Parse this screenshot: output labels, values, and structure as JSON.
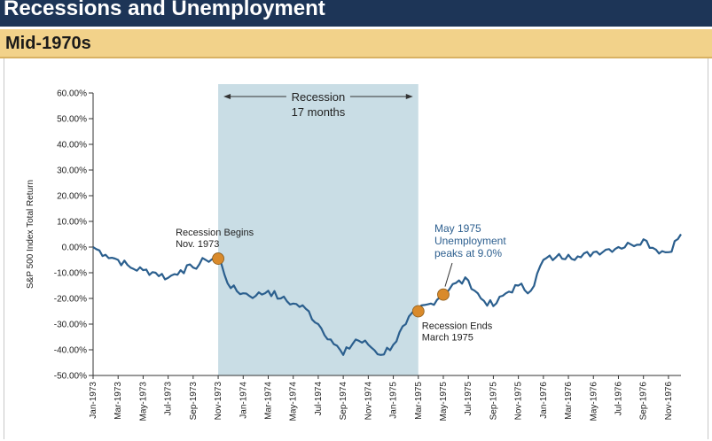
{
  "header": {
    "title": "Recessions and Unemployment"
  },
  "subheader": {
    "title": "Mid-1970s"
  },
  "colors": {
    "header_bg": "#1d3557",
    "subheader_bg": "#f2d28a",
    "line": "#2b5f8e",
    "recession_shade": "#c9dde5",
    "marker": "#d98a2b",
    "annotation_blue": "#2d5f8f"
  },
  "chart_data": {
    "type": "line",
    "ylabel": "S&P 500 Index Total Return",
    "ylim": [
      -50,
      60
    ],
    "yticks": [
      "60.00%",
      "50.00%",
      "40.00%",
      "30.00%",
      "20.00%",
      "10.00%",
      "0.00%",
      "-10.00%",
      "-20.00%",
      "-30.00%",
      "-40.00%",
      "-50.00%"
    ],
    "ytick_values": [
      60,
      50,
      40,
      30,
      20,
      10,
      0,
      -10,
      -20,
      -30,
      -40,
      -50
    ],
    "x_tick_labels": [
      "Jan-1973",
      "Mar-1973",
      "May-1973",
      "Jul-1973",
      "Sep-1973",
      "Nov-1973",
      "Jan-1974",
      "Mar-1974",
      "May-1974",
      "Jul-1974",
      "Sep-1974",
      "Nov-1974",
      "Jan-1975",
      "Mar-1975",
      "May-1975",
      "Jul-1975",
      "Sep-1975",
      "Nov-1975",
      "Jan-1976",
      "Mar-1976",
      "May-1976",
      "Jul-1976",
      "Sep-1976",
      "Nov-1976"
    ],
    "x_range": [
      "1973-01",
      "1976-12"
    ],
    "grid": false,
    "recession": {
      "start": "1973-11",
      "end": "1975-03",
      "label_line1": "Recession",
      "label_line2": "17 months"
    },
    "series": [
      {
        "x": [
          "1973-01",
          "1973-02",
          "1973-03",
          "1973-04",
          "1973-05",
          "1973-06",
          "1973-07",
          "1973-08",
          "1973-09",
          "1973-10",
          "1973-11",
          "1973-12",
          "1974-01",
          "1974-02",
          "1974-03",
          "1974-04",
          "1974-05",
          "1974-06",
          "1974-07",
          "1974-08",
          "1974-09",
          "1974-10",
          "1974-11",
          "1974-12",
          "1975-01",
          "1975-02",
          "1975-03",
          "1975-04",
          "1975-05",
          "1975-06",
          "1975-07",
          "1975-08",
          "1975-09",
          "1975-10",
          "1975-11",
          "1975-12",
          "1976-01",
          "1976-02",
          "1976-03",
          "1976-04",
          "1976-05",
          "1976-06",
          "1976-07",
          "1976-08",
          "1976-09",
          "1976-10",
          "1976-11",
          "1976-12"
        ],
        "values": [
          0,
          -3,
          -5,
          -8,
          -9,
          -10,
          -12,
          -9,
          -8,
          -5,
          -4,
          -16,
          -18,
          -19,
          -17,
          -20,
          -22,
          -24,
          -30,
          -36,
          -42,
          -36,
          -38,
          -42,
          -38,
          -30,
          -24,
          -22,
          -18,
          -14,
          -13,
          -20,
          -23,
          -18,
          -15,
          -17,
          -5,
          -4,
          -3,
          -4,
          -2,
          -1,
          0,
          1,
          3,
          -1,
          -2,
          5
        ]
      }
    ],
    "markers": [
      {
        "x": "1973-11",
        "y": -4.5,
        "label_line1": "Recession Begins",
        "label_line2": "Nov. 1973"
      },
      {
        "x": "1975-03",
        "y": -25,
        "label_line1": "Recession Ends",
        "label_line2": "March 1975"
      },
      {
        "x": "1975-05",
        "y": -18.5,
        "label_line1": "May 1975",
        "label_line2": "Unemployment",
        "label_line3": "peaks at 9.0%"
      }
    ]
  }
}
